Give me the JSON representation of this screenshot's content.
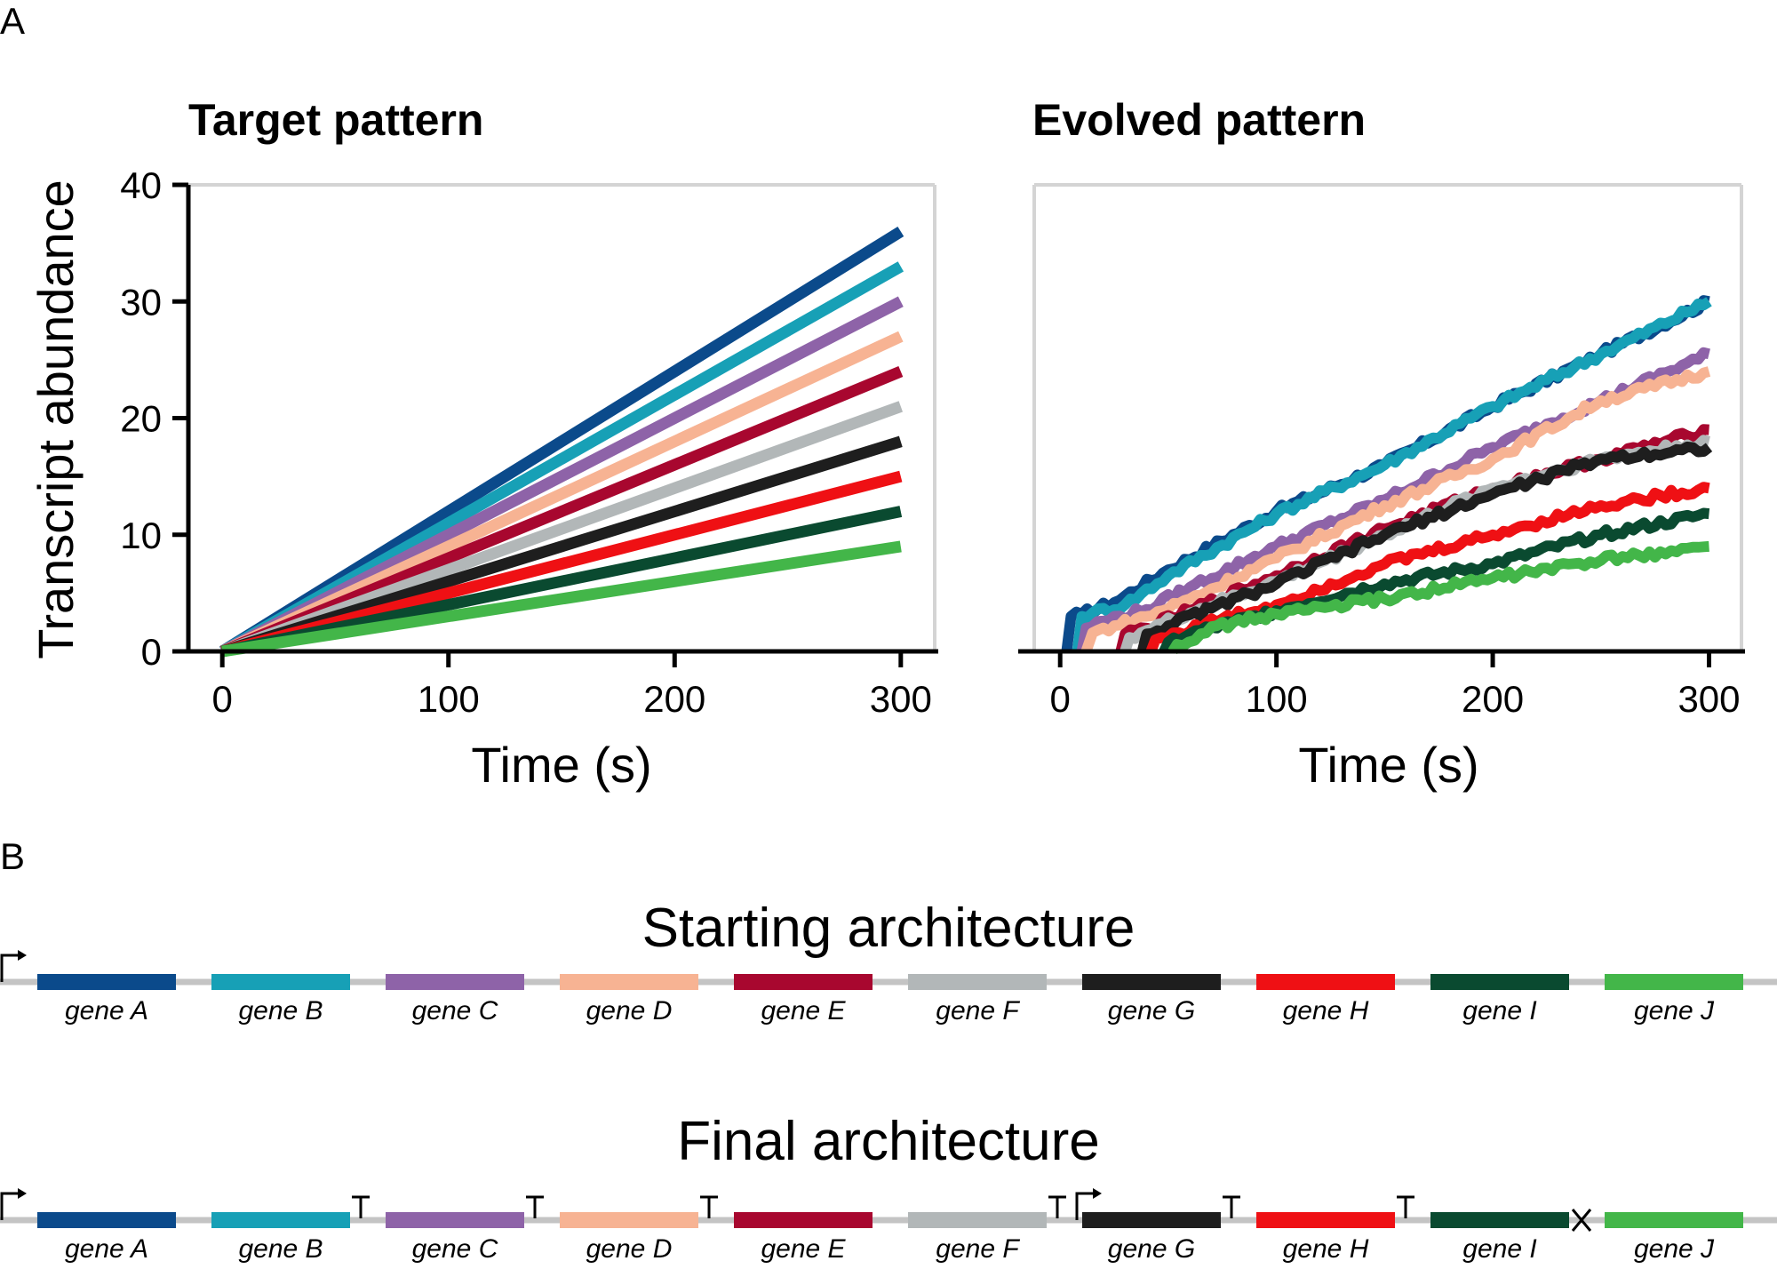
{
  "panel_labels": [
    "A",
    "B"
  ],
  "chart_data": [
    {
      "type": "line",
      "title": "Target pattern",
      "xlabel": "Time (s)",
      "ylabel": "Transcript abundance",
      "xlim": [
        -15,
        315
      ],
      "ylim": [
        0,
        40
      ],
      "xticks": [
        0,
        100,
        200,
        300
      ],
      "yticks": [
        0,
        10,
        20,
        30,
        40
      ],
      "grid": false,
      "series": [
        {
          "color": "#0b4a8b",
          "x": [
            0,
            300
          ],
          "y": [
            0,
            36
          ]
        },
        {
          "color": "#17a0b6",
          "x": [
            0,
            300
          ],
          "y": [
            0,
            33
          ]
        },
        {
          "color": "#8e63a8",
          "x": [
            0,
            300
          ],
          "y": [
            0,
            30
          ]
        },
        {
          "color": "#f7b393",
          "x": [
            0,
            300
          ],
          "y": [
            0,
            27
          ]
        },
        {
          "color": "#a8072f",
          "x": [
            0,
            300
          ],
          "y": [
            0,
            24
          ]
        },
        {
          "color": "#b2b7b8",
          "x": [
            0,
            300
          ],
          "y": [
            0,
            21
          ]
        },
        {
          "color": "#1e1e1e",
          "x": [
            0,
            300
          ],
          "y": [
            0,
            18
          ]
        },
        {
          "color": "#ef1014",
          "x": [
            0,
            300
          ],
          "y": [
            0,
            15
          ]
        },
        {
          "color": "#0a4a30",
          "x": [
            0,
            300
          ],
          "y": [
            0,
            12
          ]
        },
        {
          "color": "#43b649",
          "x": [
            0,
            300
          ],
          "y": [
            0,
            9
          ]
        }
      ]
    },
    {
      "type": "line",
      "title": "Evolved pattern",
      "xlabel": "Time (s)",
      "ylabel": "",
      "xlim": [
        -12,
        315
      ],
      "ylim": [
        0,
        40
      ],
      "xticks": [
        0,
        100,
        200,
        300
      ],
      "yticks": [],
      "grid": false,
      "series": [
        {
          "color": "#0b4a8b",
          "x": [
            3,
            5,
            10,
            25,
            50,
            100,
            150,
            200,
            250,
            300
          ],
          "y": [
            0,
            3,
            3.2,
            4.2,
            7,
            12,
            16,
            21,
            25.5,
            30
          ]
        },
        {
          "color": "#17a0b6",
          "x": [
            8,
            10,
            15,
            30,
            50,
            100,
            150,
            200,
            250,
            300
          ],
          "y": [
            0,
            3,
            3.3,
            4,
            6.5,
            11.8,
            16,
            21,
            25.5,
            30
          ]
        },
        {
          "color": "#8e63a8",
          "x": [
            10,
            12,
            20,
            40,
            60,
            100,
            150,
            200,
            250,
            300
          ],
          "y": [
            0,
            2,
            2.6,
            3.6,
            5.5,
            9,
            13,
            17.5,
            21.5,
            25.5
          ]
        },
        {
          "color": "#f7b393",
          "x": [
            12,
            15,
            25,
            40,
            60,
            100,
            150,
            200,
            250,
            300
          ],
          "y": [
            0,
            1.6,
            2.2,
            3,
            4.5,
            8,
            12.5,
            16.5,
            21.5,
            24
          ]
        },
        {
          "color": "#a8072f",
          "x": [
            28,
            30,
            40,
            60,
            100,
            150,
            200,
            250,
            300
          ],
          "y": [
            0,
            1.5,
            2,
            3.5,
            6.5,
            10.5,
            14,
            16.5,
            19
          ]
        },
        {
          "color": "#b2b7b8",
          "x": [
            30,
            32,
            40,
            60,
            100,
            150,
            200,
            250,
            300
          ],
          "y": [
            0,
            1.2,
            1.8,
            3.3,
            6,
            10,
            14,
            16.5,
            18
          ]
        },
        {
          "color": "#1e1e1e",
          "x": [
            38,
            40,
            50,
            70,
            100,
            150,
            200,
            250,
            300
          ],
          "y": [
            0,
            1.5,
            2.2,
            3.7,
            5.8,
            10,
            13.5,
            16.5,
            17.5
          ]
        },
        {
          "color": "#ef1014",
          "x": [
            42,
            44,
            55,
            75,
            100,
            150,
            200,
            250,
            300
          ],
          "y": [
            0,
            1,
            1.6,
            2.8,
            4,
            7.5,
            10,
            12.5,
            14
          ]
        },
        {
          "color": "#0a4a30",
          "x": [
            48,
            50,
            60,
            80,
            100,
            150,
            200,
            250,
            300
          ],
          "y": [
            0,
            0.8,
            1.5,
            2.5,
            3.5,
            5.8,
            7.5,
            10,
            11.8
          ]
        },
        {
          "color": "#43b649",
          "x": [
            52,
            54,
            65,
            80,
            100,
            150,
            200,
            250,
            300
          ],
          "y": [
            0,
            0.6,
            1.5,
            2.5,
            3.2,
            4.5,
            6.3,
            7.8,
            9
          ]
        }
      ]
    }
  ],
  "architectures": [
    {
      "title": "Starting architecture",
      "genes": [
        {
          "label": "gene A",
          "color": "#0b4a8b"
        },
        {
          "label": "gene B",
          "color": "#17a0b6"
        },
        {
          "label": "gene C",
          "color": "#8e63a8"
        },
        {
          "label": "gene D",
          "color": "#f7b393"
        },
        {
          "label": "gene E",
          "color": "#a8072f"
        },
        {
          "label": "gene F",
          "color": "#b2b7b8"
        },
        {
          "label": "gene G",
          "color": "#1e1e1e"
        },
        {
          "label": "gene H",
          "color": "#ef1014"
        },
        {
          "label": "gene I",
          "color": "#0a4a30"
        },
        {
          "label": "gene J",
          "color": "#43b649"
        }
      ],
      "elements": [
        {
          "kind": "promoter",
          "after_gene": -1
        }
      ]
    },
    {
      "title": "Final architecture",
      "genes": [
        {
          "label": "gene A",
          "color": "#0b4a8b"
        },
        {
          "label": "gene B",
          "color": "#17a0b6"
        },
        {
          "label": "gene C",
          "color": "#8e63a8"
        },
        {
          "label": "gene D",
          "color": "#f7b393"
        },
        {
          "label": "gene E",
          "color": "#a8072f"
        },
        {
          "label": "gene F",
          "color": "#b2b7b8"
        },
        {
          "label": "gene G",
          "color": "#1e1e1e"
        },
        {
          "label": "gene H",
          "color": "#ef1014"
        },
        {
          "label": "gene I",
          "color": "#0a4a30"
        },
        {
          "label": "gene J",
          "color": "#43b649"
        }
      ],
      "elements": [
        {
          "kind": "promoter",
          "after_gene": -1
        },
        {
          "kind": "terminator",
          "after_gene": 1
        },
        {
          "kind": "terminator",
          "after_gene": 2
        },
        {
          "kind": "terminator",
          "after_gene": 3
        },
        {
          "kind": "terminator",
          "after_gene": 5
        },
        {
          "kind": "promoter",
          "after_gene": 5
        },
        {
          "kind": "terminator",
          "after_gene": 6
        },
        {
          "kind": "terminator",
          "after_gene": 7
        },
        {
          "kind": "rnase",
          "after_gene": 8
        }
      ]
    }
  ]
}
